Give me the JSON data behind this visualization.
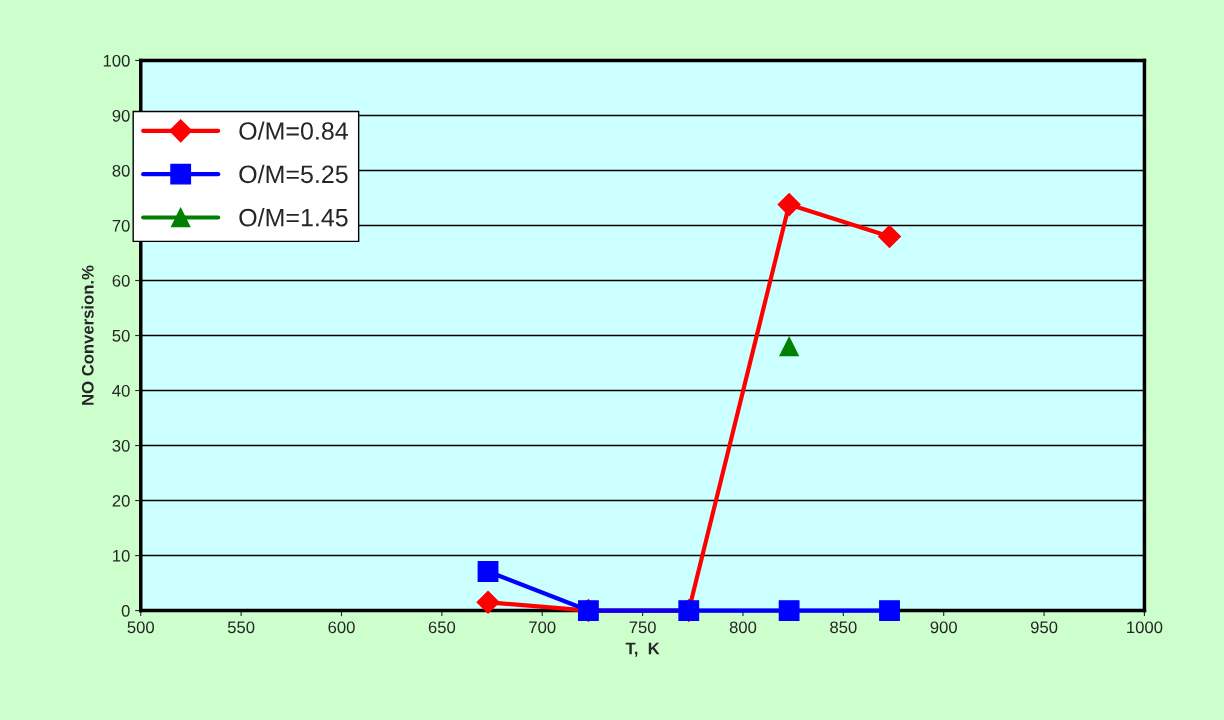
{
  "chart_data": {
    "type": "line",
    "xlabel": "T,  K",
    "ylabel": "NO Conversion.%",
    "xlim": [
      500,
      1000
    ],
    "xticks": [
      500,
      550,
      600,
      650,
      700,
      750,
      800,
      850,
      900,
      950,
      1000
    ],
    "ylim": [
      0,
      100
    ],
    "yticks": [
      0,
      10,
      20,
      30,
      40,
      50,
      60,
      70,
      80,
      90,
      100
    ],
    "grid": "y",
    "legend": "top left",
    "series": [
      {
        "name": "O/M=0.84",
        "color": "#ff0000",
        "marker": "diamond",
        "x": [
          673,
          723,
          773,
          823,
          873
        ],
        "values": [
          1.5,
          0,
          0,
          73.8,
          68
        ]
      },
      {
        "name": "O/M=5.25",
        "color": "#0000ff",
        "marker": "square",
        "x": [
          673,
          723,
          773,
          823,
          873
        ],
        "values": [
          7.1,
          0,
          0,
          0,
          0
        ]
      },
      {
        "name": "O/M=1.45",
        "color": "#008000",
        "marker": "triangle",
        "x": [
          823
        ],
        "values": [
          48
        ]
      }
    ]
  }
}
